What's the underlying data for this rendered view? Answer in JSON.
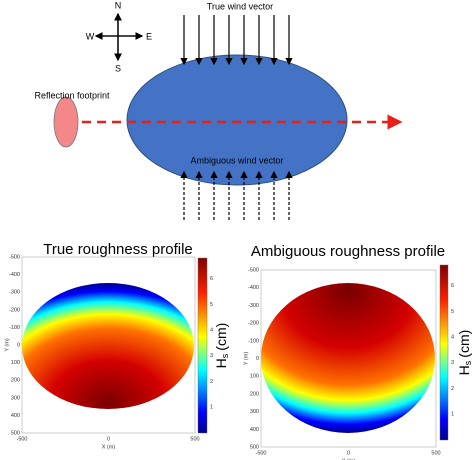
{
  "compass": {
    "n": "N",
    "s": "S",
    "w": "W",
    "e": "E"
  },
  "labels": {
    "true_wind": "True wind vector",
    "reflection": "Reflection footprint",
    "ambiguous_wind": "Ambiguous wind vector"
  },
  "plots": [
    {
      "title": "True roughness profile",
      "y_ticks": [
        "-500",
        "-400",
        "-300",
        "-200",
        "-100",
        "0",
        "100",
        "200",
        "300",
        "400",
        "500"
      ],
      "x_ticks": [
        "-500",
        "0",
        "500"
      ],
      "y_label": "Y (m)",
      "x_label": "X (m)",
      "colorbar_ticks": [
        "1",
        "2",
        "3",
        "4",
        "5",
        "6"
      ],
      "colorbar_label": "H",
      "colorbar_sub": "s",
      "colorbar_unit": "(cm)"
    },
    {
      "title": "Ambiguous roughness profile",
      "y_ticks": [
        "-500",
        "-400",
        "-300",
        "-200",
        "-100",
        "0",
        "100",
        "200",
        "300",
        "400",
        "500"
      ],
      "x_ticks": [
        "-500",
        "0",
        "500"
      ],
      "y_label": "Y (m)",
      "x_label": "X (m)",
      "colorbar_ticks": [
        "1",
        "2",
        "3",
        "4",
        "5",
        "6"
      ],
      "colorbar_label": "H",
      "colorbar_sub": "s",
      "colorbar_unit": "(cm)"
    }
  ]
}
